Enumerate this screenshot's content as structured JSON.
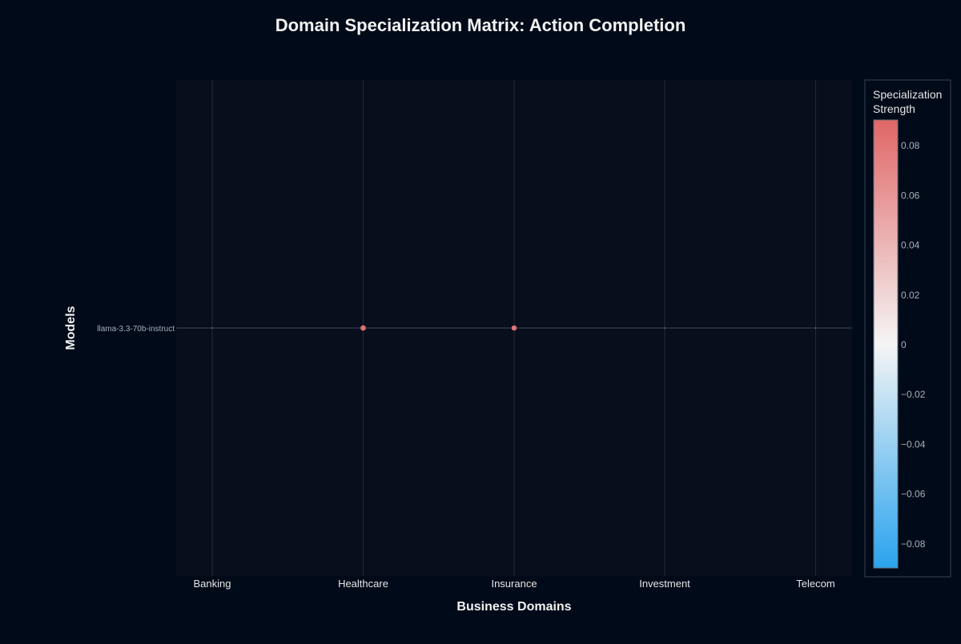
{
  "chart_data": {
    "type": "scatter",
    "title": "Domain Specialization Matrix: Action Completion",
    "xlabel": "Business Domains",
    "ylabel": "Models",
    "categories": [
      "Banking",
      "Healthcare",
      "Insurance",
      "Investment",
      "Telecom"
    ],
    "models": [
      "llama-3.3-70b-instruct"
    ],
    "series": [
      {
        "name": "llama-3.3-70b-instruct",
        "values": [
          -0.002,
          0.085,
          0.082,
          0.004,
          0.008
        ]
      }
    ],
    "colorbar": {
      "title_lines": [
        "Specialization",
        "Strength"
      ],
      "range": [
        -0.09,
        0.09
      ],
      "ticks": [
        0.08,
        0.06,
        0.04,
        0.02,
        0,
        -0.02,
        -0.04,
        -0.06,
        -0.08
      ],
      "tick_labels": [
        "0.08",
        "0.06",
        "0.04",
        "0.02",
        "0",
        "−0.02",
        "−0.04",
        "−0.06",
        "−0.08"
      ],
      "colors": {
        "high": "#e06666",
        "mid": "#f5f5f5",
        "low": "#29a3ee"
      }
    },
    "grid": true,
    "legend": "colorbar-right"
  }
}
